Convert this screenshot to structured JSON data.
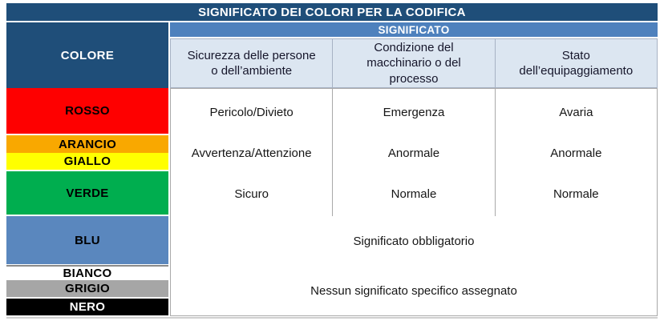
{
  "title": "SIGNIFICATO DEI COLORI PER LA CODIFICA",
  "header": {
    "colore": "COLORE",
    "significato": "SIGNIFICATO",
    "columns": [
      "Sicurezza delle persone\no dell’ambiente",
      "Condizione del\nmacchinario o del\nprocesso",
      "Stato\ndell’equipaggiamento"
    ]
  },
  "rows": [
    {
      "colors": [
        {
          "name": "ROSSO",
          "hex": "#FE0000",
          "label_color": "#000000"
        }
      ],
      "cells": [
        "Pericolo/Divieto",
        "Emergenza",
        "Avaria"
      ]
    },
    {
      "colors": [
        {
          "name": "ARANCIO",
          "hex": "#F9A800",
          "label_color": "#000000"
        },
        {
          "name": "GIALLO",
          "hex": "#FFFF00",
          "label_color": "#000000"
        }
      ],
      "cells": [
        "Avvertenza/Attenzione",
        "Anormale",
        "Anormale"
      ]
    },
    {
      "colors": [
        {
          "name": "VERDE",
          "hex": "#00AE4F",
          "label_color": "#000000"
        }
      ],
      "cells": [
        "Sicuro",
        "Normale",
        "Normale"
      ]
    },
    {
      "colors": [
        {
          "name": "BLU",
          "hex": "#5A87BE",
          "label_color": "#000000"
        }
      ],
      "merged_cell": "Significato obbligatorio"
    },
    {
      "colors": [
        {
          "name": "BIANCO",
          "hex": "#FFFFFF",
          "label_color": "#000000"
        },
        {
          "name": "GRIGIO",
          "hex": "#A6A6A6",
          "label_color": "#000000"
        },
        {
          "name": "NERO",
          "hex": "#000000",
          "label_color": "#FFFFFF"
        }
      ],
      "merged_cell": "Nessun significato specifico assegnato"
    }
  ],
  "theme": {
    "navy": "#1F4E79",
    "medium_blue": "#4E81BD",
    "light_blue": "#DCE6F1"
  }
}
